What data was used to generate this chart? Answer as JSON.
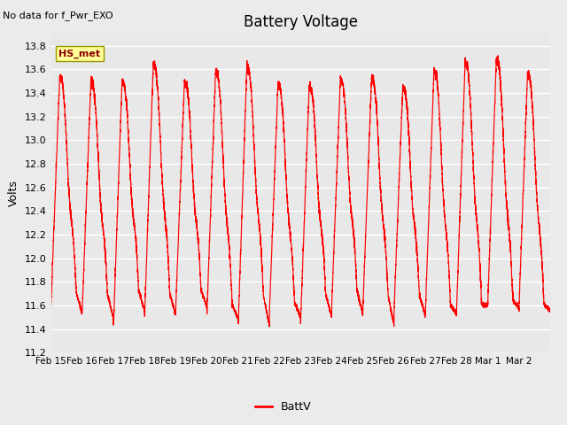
{
  "title": "Battery Voltage",
  "top_left_text": "No data for f_Pwr_EXO",
  "ylabel": "Volts",
  "legend_label": "BattV",
  "line_color": "#FF0000",
  "fig_bg_color": "#EBEBEB",
  "plot_bg_color": "#E8E8E8",
  "hs_met_box_color": "#FFFF99",
  "hs_met_text_color": "#8B0000",
  "hs_met_border_color": "#999900",
  "ylim": [
    11.2,
    13.9
  ],
  "yticks": [
    11.2,
    11.4,
    11.6,
    11.8,
    12.0,
    12.2,
    12.4,
    12.6,
    12.8,
    13.0,
    13.2,
    13.4,
    13.6,
    13.8
  ],
  "num_days": 16,
  "tick_labels": [
    "Feb 15",
    "Feb 16",
    "Feb 17",
    "Feb 18",
    "Feb 19",
    "Feb 20",
    "Feb 21",
    "Feb 22",
    "Feb 23",
    "Feb 24",
    "Feb 25",
    "Feb 26",
    "Feb 27",
    "Feb 28",
    "Mar 1",
    "Mar 2"
  ]
}
